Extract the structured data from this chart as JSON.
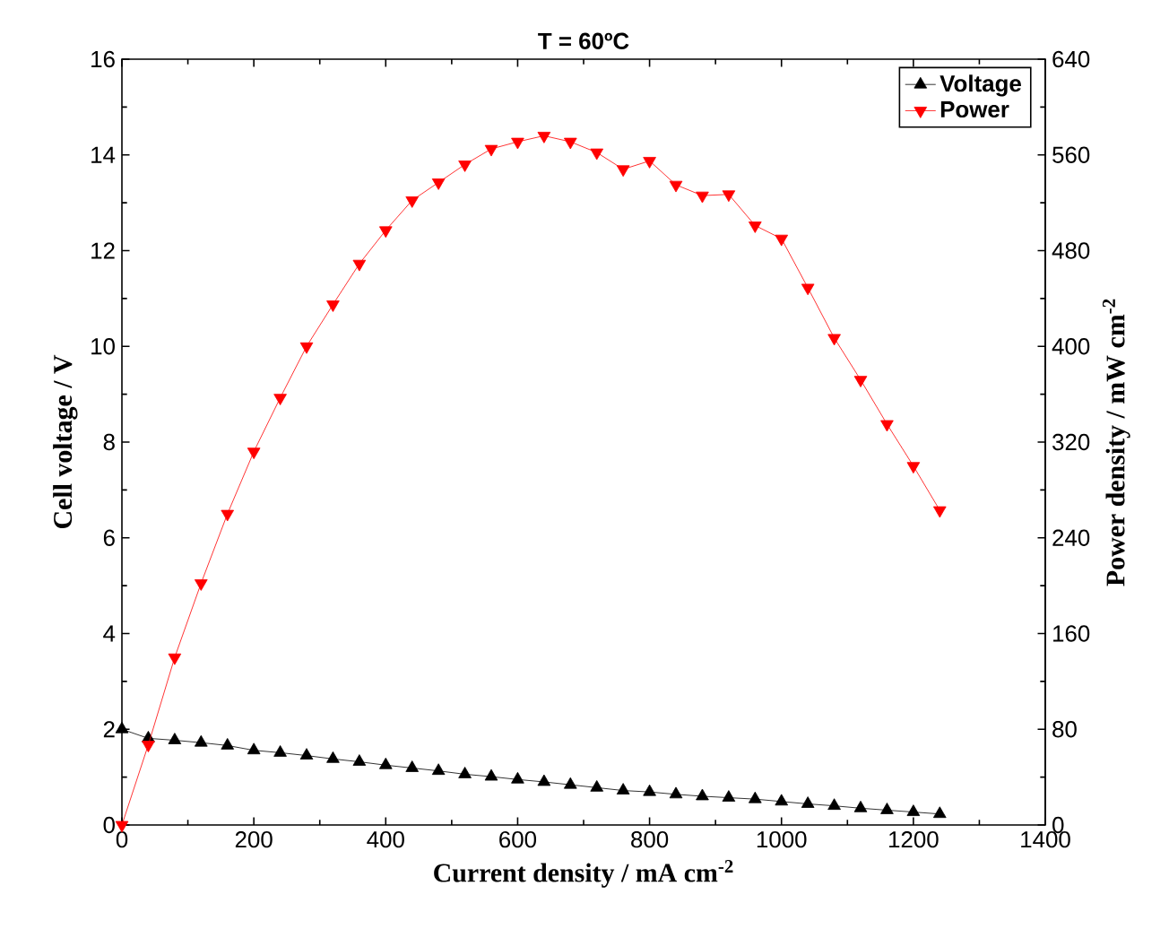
{
  "chart_data": {
    "type": "line",
    "title": "T = 60ºC",
    "xlabel": "Current density / mA cm$^{-2}$",
    "ylabel": "Cell voltage / V",
    "y2label": "Power density / mW cm$^{-2}$",
    "xlim": [
      0,
      1400
    ],
    "xticks": [
      0,
      200,
      400,
      600,
      800,
      1000,
      1200,
      1400
    ],
    "ylim": [
      0,
      16
    ],
    "yticks": [
      0,
      2,
      4,
      6,
      8,
      10,
      12,
      14,
      16
    ],
    "y2lim": [
      0,
      640
    ],
    "y2ticks": [
      0,
      80,
      160,
      240,
      320,
      400,
      480,
      560,
      640
    ],
    "x": [
      0,
      40,
      80,
      120,
      160,
      200,
      240,
      280,
      320,
      360,
      400,
      440,
      480,
      520,
      560,
      600,
      640,
      680,
      720,
      760,
      800,
      840,
      880,
      920,
      960,
      1000,
      1040,
      1080,
      1120,
      1160,
      1200,
      1240
    ],
    "series": [
      {
        "name": "Voltage",
        "color": "#000000",
        "marker": "triangle",
        "values": [
          2.0,
          1.81,
          1.77,
          1.72,
          1.66,
          1.56,
          1.51,
          1.45,
          1.38,
          1.32,
          1.25,
          1.19,
          1.13,
          1.06,
          1.01,
          0.95,
          0.9,
          0.84,
          0.78,
          0.72,
          0.69,
          0.64,
          0.6,
          0.57,
          0.54,
          0.49,
          0.44,
          0.4,
          0.35,
          0.31,
          0.27,
          0.23
        ]
      },
      {
        "name": "Power",
        "color": "#ff0000",
        "marker": "triangle",
        "axis": "y2",
        "values": [
          0,
          67,
          140,
          202,
          260,
          312,
          357,
          400,
          435,
          469,
          497,
          522,
          537,
          552,
          565,
          571,
          576,
          571,
          562,
          548,
          555,
          535,
          526,
          527,
          501,
          490,
          449,
          407,
          372,
          335,
          300,
          263
        ]
      }
    ],
    "legend": "top right",
    "grid": false
  }
}
